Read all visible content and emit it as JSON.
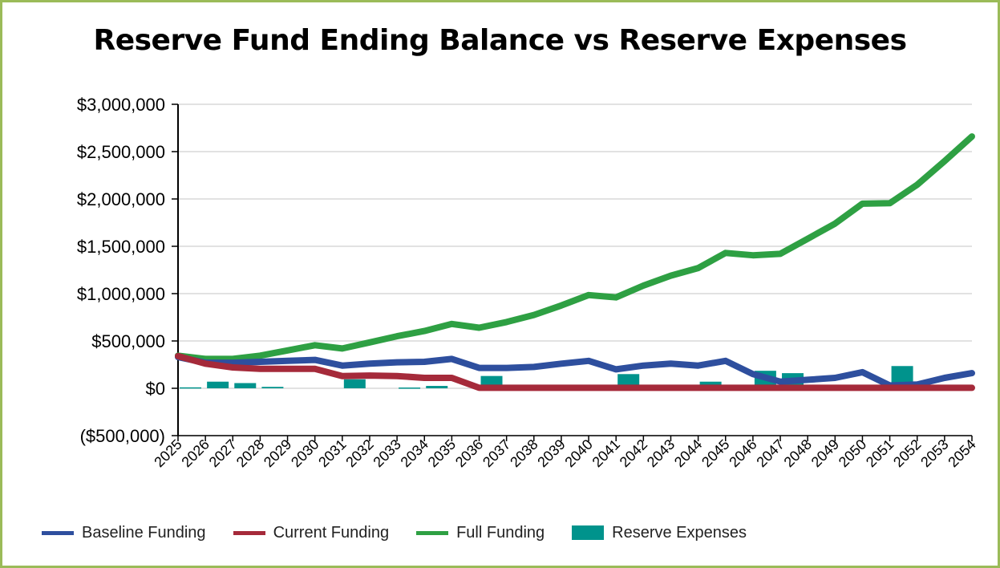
{
  "chart_data": {
    "type": "line+bar",
    "title": "Reserve Fund Ending Balance vs Reserve Expenses",
    "xlabel": "",
    "ylabel": "",
    "ylim": [
      -500000,
      3000000
    ],
    "y_ticks": [
      -500000,
      0,
      500000,
      1000000,
      1500000,
      2000000,
      2500000,
      3000000
    ],
    "y_tick_labels": [
      "($500,000)",
      "$0",
      "$500,000",
      "$1,000,000",
      "$1,500,000",
      "$2,000,000",
      "$2,500,000",
      "$3,000,000"
    ],
    "categories": [
      "2025",
      "2026",
      "2027",
      "2028",
      "2029",
      "2030",
      "2031",
      "2032",
      "2033",
      "2034",
      "2035",
      "2036",
      "2037",
      "2038",
      "2039",
      "2040",
      "2041",
      "2042",
      "2043",
      "2044",
      "2045",
      "2046",
      "2047",
      "2048",
      "2049",
      "2050",
      "2051",
      "2052",
      "2053",
      "2054"
    ],
    "grid": true,
    "legend_position": "bottom",
    "series": [
      {
        "name": "Baseline Funding",
        "kind": "line",
        "color": "#2e4f9e",
        "values": [
          330000,
          270000,
          270000,
          280000,
          290000,
          300000,
          240000,
          260000,
          275000,
          280000,
          310000,
          215000,
          215000,
          225000,
          260000,
          290000,
          200000,
          240000,
          260000,
          240000,
          290000,
          150000,
          70000,
          90000,
          110000,
          170000,
          30000,
          40000,
          110000,
          160000
        ]
      },
      {
        "name": "Current Funding",
        "kind": "line",
        "color": "#a52a3a",
        "values": [
          340000,
          260000,
          220000,
          205000,
          205000,
          205000,
          130000,
          135000,
          130000,
          110000,
          110000,
          5000,
          5000,
          5000,
          5000,
          5000,
          5000,
          5000,
          5000,
          5000,
          5000,
          5000,
          5000,
          5000,
          5000,
          5000,
          5000,
          5000,
          5000,
          5000
        ]
      },
      {
        "name": "Full Funding",
        "kind": "line",
        "color": "#2ea043",
        "values": [
          345000,
          310000,
          310000,
          345000,
          400000,
          455000,
          420000,
          485000,
          550000,
          605000,
          680000,
          640000,
          700000,
          775000,
          875000,
          985000,
          960000,
          1085000,
          1190000,
          1270000,
          1430000,
          1405000,
          1420000,
          1580000,
          1740000,
          1950000,
          1955000,
          2150000,
          2400000,
          2660000
        ]
      },
      {
        "name": "Reserve Expenses",
        "kind": "bar",
        "color": "#00938c",
        "values": [
          10000,
          70000,
          55000,
          15000,
          0,
          0,
          95000,
          0,
          8000,
          25000,
          0,
          130000,
          0,
          0,
          0,
          0,
          150000,
          0,
          0,
          70000,
          0,
          185000,
          160000,
          0,
          0,
          0,
          235000,
          0,
          0,
          0
        ]
      }
    ]
  }
}
